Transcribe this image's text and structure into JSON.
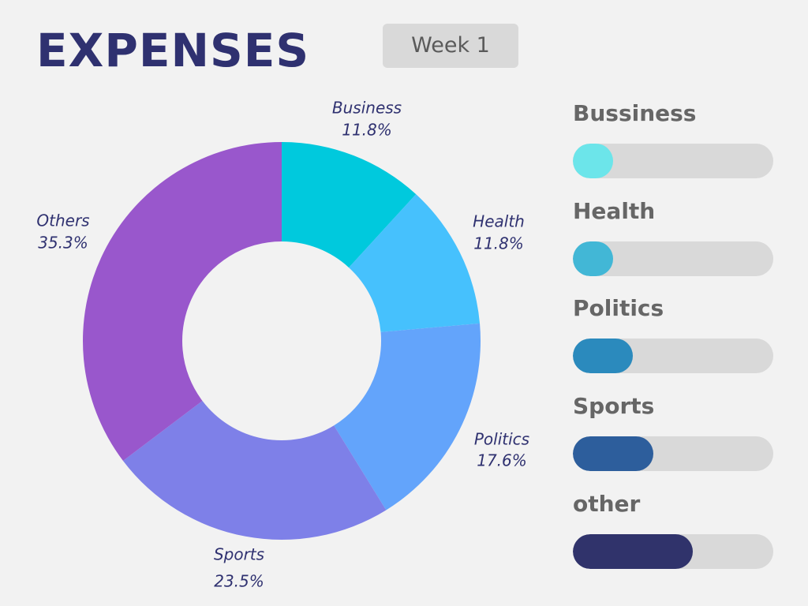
{
  "header": {
    "title": "EXPENSES",
    "week_label": "Week 1"
  },
  "chart_data": {
    "type": "pie",
    "donut": true,
    "slices": [
      {
        "label": "Business",
        "value_label": "11.8%",
        "value": 11.8,
        "color": "#00c9dd"
      },
      {
        "label": "Health",
        "value_label": "11.8%",
        "value": 11.8,
        "color": "#46c1fd"
      },
      {
        "label": "Politics",
        "value_label": "17.6%",
        "value": 17.6,
        "color": "#63a4fb"
      },
      {
        "label": "Sports",
        "value_label": "23.5%",
        "value": 23.5,
        "color": "#7e80e8"
      },
      {
        "label": "Others",
        "value_label": "35.3%",
        "value": 35.3,
        "color": "#9957cc"
      }
    ]
  },
  "progress": [
    {
      "label": "Bussiness",
      "fraction": 0.2,
      "color": "#6ce5ea"
    },
    {
      "label": "Health",
      "fraction": 0.2,
      "color": "#42b7d6"
    },
    {
      "label": "Politics",
      "fraction": 0.3,
      "color": "#2b8abd"
    },
    {
      "label": "Sports",
      "fraction": 0.4,
      "color": "#2d5e9c"
    },
    {
      "label": "other",
      "fraction": 0.6,
      "color": "#30336b"
    }
  ]
}
